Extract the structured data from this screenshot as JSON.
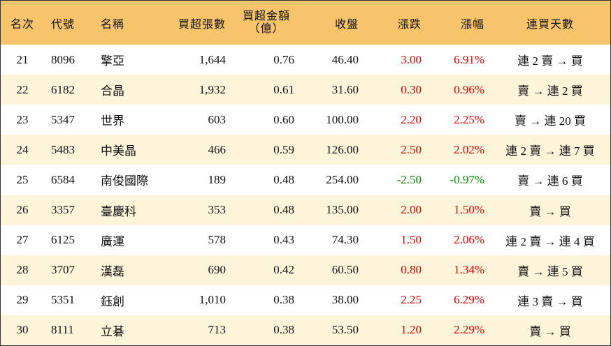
{
  "table": {
    "headers": [
      "名次",
      "代號",
      "名稱",
      "買超張數",
      [
        "買超金額",
        "（億）"
      ],
      "收盤",
      "漲跌",
      "漲幅",
      "連買天數"
    ],
    "rows": [
      [
        "21",
        "8096",
        "擎亞",
        "1,644",
        "0.76",
        "46.40",
        "3.00",
        "6.91%",
        "連 2 賣 → 買"
      ],
      [
        "22",
        "6182",
        "合晶",
        "1,932",
        "0.61",
        "31.60",
        "0.30",
        "0.96%",
        "賣 → 連 2 買"
      ],
      [
        "23",
        "5347",
        "世界",
        "603",
        "0.60",
        "100.00",
        "2.20",
        "2.25%",
        "賣 → 連 20 買"
      ],
      [
        "24",
        "5483",
        "中美晶",
        "466",
        "0.59",
        "126.00",
        "2.50",
        "2.02%",
        "連 2 賣 → 連 7 買"
      ],
      [
        "25",
        "6584",
        "南俊國際",
        "189",
        "0.48",
        "254.00",
        "-2.50",
        "-0.97%",
        "賣 → 連 6 買"
      ],
      [
        "26",
        "3357",
        "臺慶科",
        "353",
        "0.48",
        "135.00",
        "2.00",
        "1.50%",
        "賣 → 買"
      ],
      [
        "27",
        "6125",
        "廣運",
        "578",
        "0.43",
        "74.30",
        "1.50",
        "2.06%",
        "連 2 賣 → 連 4 買"
      ],
      [
        "28",
        "3707",
        "漢磊",
        "690",
        "0.42",
        "60.50",
        "0.80",
        "1.34%",
        "賣 → 連 5 買"
      ],
      [
        "29",
        "5351",
        "鈺創",
        "1,010",
        "0.38",
        "38.00",
        "2.25",
        "6.29%",
        "連 3 賣 → 買"
      ],
      [
        "30",
        "8111",
        "立碁",
        "713",
        "0.38",
        "53.50",
        "1.20",
        "2.29%",
        "賣 → 買"
      ]
    ]
  }
}
